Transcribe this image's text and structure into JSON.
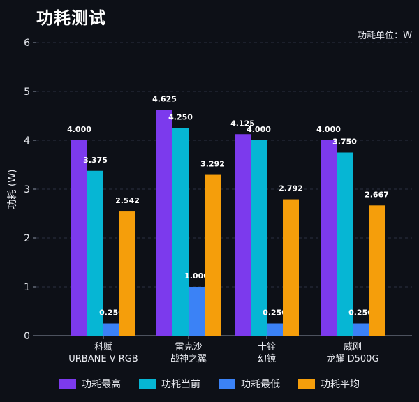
{
  "title": "功耗测试",
  "unit_note": "功耗单位：W",
  "chart_data": {
    "type": "bar",
    "ylabel": "功耗 (W)",
    "ylim": [
      0,
      6
    ],
    "yticks": [
      0,
      1,
      2,
      3,
      4,
      5,
      6
    ],
    "grid": true,
    "legend_position": "bottom",
    "categories": [
      [
        "科赋",
        "URBANE V RGB"
      ],
      [
        "雷克沙",
        "战神之翼"
      ],
      [
        "十铨",
        "幻镜"
      ],
      [
        "威刚",
        "龙耀 D500G"
      ]
    ],
    "series": [
      {
        "name": "功耗最高",
        "color": "#7c3aed",
        "values": [
          4.0,
          4.625,
          4.125,
          4.0
        ],
        "labels": [
          "4.000",
          "4.625",
          "4.125",
          "4.000"
        ]
      },
      {
        "name": "功耗当前",
        "color": "#06b6d4",
        "values": [
          3.375,
          4.25,
          4.0,
          3.75
        ],
        "labels": [
          "3.375",
          "4.250",
          "4.000",
          "3.750"
        ]
      },
      {
        "name": "功耗最低",
        "color": "#3b82f6",
        "values": [
          0.25,
          1.0,
          0.25,
          0.25
        ],
        "labels": [
          "0.250",
          "1.000",
          "0.250",
          "0.250"
        ]
      },
      {
        "name": "功耗平均",
        "color": "#f59e0b",
        "values": [
          2.542,
          3.292,
          2.792,
          2.667
        ],
        "labels": [
          "2.542",
          "3.292",
          "2.792",
          "2.667"
        ]
      }
    ]
  }
}
